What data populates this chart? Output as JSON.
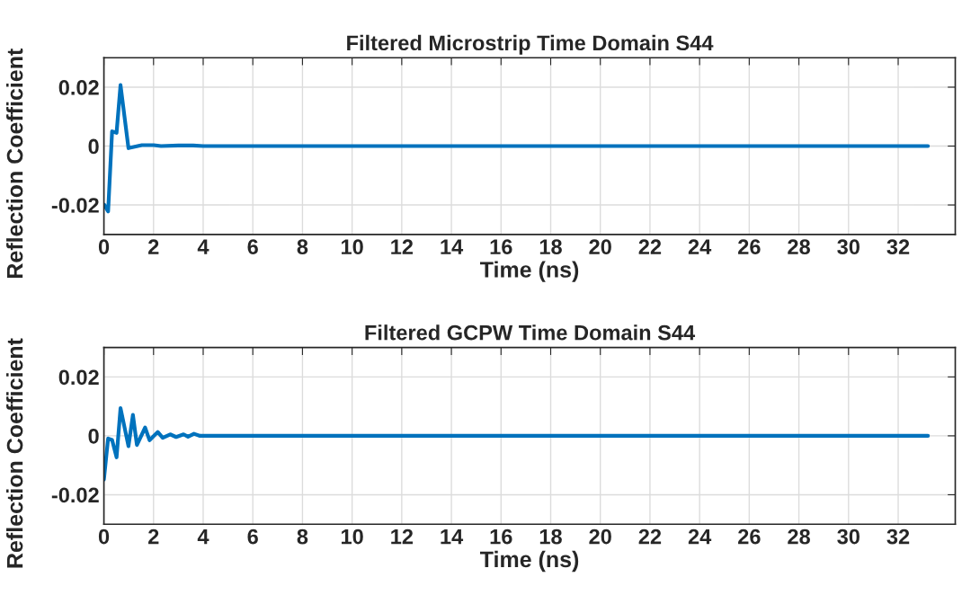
{
  "chart_data": [
    {
      "type": "line",
      "title": "Filtered Microstrip Time Domain S44",
      "xlabel": "Time (ns)",
      "ylabel": "Reflection Coefficient",
      "x": [
        0.02,
        0.17,
        0.33,
        0.51,
        0.67,
        0.99,
        1.53,
        2.01,
        2.3,
        3.0,
        3.6,
        4.0,
        33.2
      ],
      "series": [
        {
          "color": "#0072bd",
          "values": [
            -0.02,
            -0.0222,
            0.005,
            0.0045,
            0.0207,
            -0.0007,
            0.0003,
            0.0003,
            0,
            0.0002,
            0.0002,
            0,
            0
          ]
        }
      ],
      "xlim": [
        0,
        34.3
      ],
      "xticks": [
        0,
        2,
        4,
        6,
        8,
        10,
        12,
        14,
        16,
        18,
        20,
        22,
        24,
        26,
        28,
        30,
        32
      ],
      "ylim": [
        -0.03,
        0.03
      ],
      "yticks": [
        -0.02,
        0,
        0.02
      ],
      "grid": true,
      "line_style": "solid",
      "marker": "none"
    },
    {
      "type": "line",
      "title": "Filtered GCPW Time Domain S44",
      "xlabel": "Time (ns)",
      "ylabel": "Reflection Coefficient",
      "x": [
        0,
        0.17,
        0.33,
        0.51,
        0.67,
        0.99,
        1.17,
        1.33,
        1.66,
        1.84,
        2.17,
        2.37,
        2.67,
        2.91,
        3.21,
        3.39,
        3.63,
        3.87,
        33.2
      ],
      "series": [
        {
          "color": "#0072bd",
          "values": [
            -0.0148,
            -0.0009,
            -0.0014,
            -0.0073,
            0.0094,
            -0.0035,
            0.0071,
            -0.0031,
            0.0028,
            -0.0015,
            0.0013,
            -0.0007,
            0.0005,
            -0.0004,
            0.0005,
            -0.0003,
            0.0007,
            0,
            0
          ]
        }
      ],
      "xlim": [
        0,
        34.3
      ],
      "xticks": [
        0,
        2,
        4,
        6,
        8,
        10,
        12,
        14,
        16,
        18,
        20,
        22,
        24,
        26,
        28,
        30,
        32
      ],
      "ylim": [
        -0.03,
        0.03
      ],
      "yticks": [
        -0.02,
        0,
        0.02
      ],
      "grid": true,
      "line_style": "solid",
      "marker": "none"
    }
  ]
}
